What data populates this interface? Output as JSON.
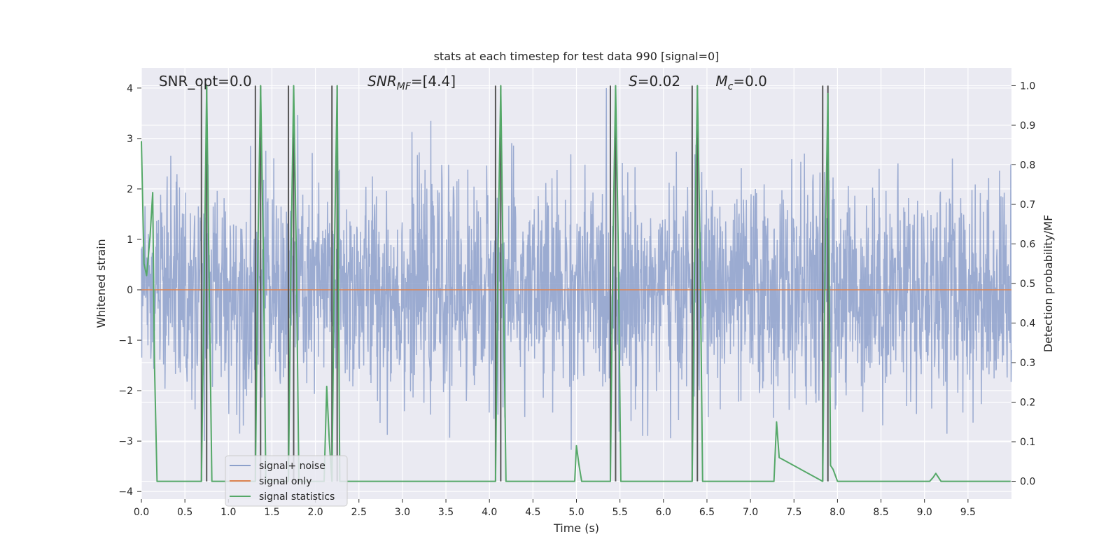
{
  "chart_data": {
    "type": "line",
    "title": "stats at each timestep for test data 990 [signal=0]",
    "xlabel": "Time (s)",
    "ylabel": "Whitened strain",
    "y2label": "Detection probability/MF",
    "xlim": [
      0,
      10
    ],
    "ylim": [
      -4.15,
      4.4
    ],
    "y2lim": [
      -0.045,
      1.045
    ],
    "x_ticks": [
      0.0,
      0.5,
      1.0,
      1.5,
      2.0,
      2.5,
      3.0,
      3.5,
      4.0,
      4.5,
      5.0,
      5.5,
      6.0,
      6.5,
      7.0,
      7.5,
      8.0,
      8.5,
      9.0,
      9.5
    ],
    "x_tick_labels": [
      "0.0",
      "0.5",
      "1.0",
      "1.5",
      "2.0",
      "2.5",
      "3.0",
      "3.5",
      "4.0",
      "4.5",
      "5.0",
      "5.5",
      "6.0",
      "6.5",
      "7.0",
      "7.5",
      "8.0",
      "8.5",
      "9.0",
      "9.5"
    ],
    "y_ticks": [
      -4,
      -3,
      -2,
      -1,
      0,
      1,
      2,
      3,
      4
    ],
    "y_tick_labels": [
      "−4",
      "−3",
      "−2",
      "−1",
      "0",
      "1",
      "2",
      "3",
      "4"
    ],
    "y2_ticks": [
      0.0,
      0.1,
      0.2,
      0.3,
      0.4,
      0.5,
      0.6,
      0.7,
      0.8,
      0.9,
      1.0
    ],
    "y2_tick_labels": [
      "0.0",
      "0.1",
      "0.2",
      "0.3",
      "0.4",
      "0.5",
      "0.6",
      "0.7",
      "0.8",
      "0.9",
      "1.0"
    ],
    "grid": true,
    "legend_position": "lower-left",
    "colors": {
      "background": "#eaeaf2",
      "grid": "#ffffff",
      "noise": "#8da0cb",
      "signal": "#dd8452",
      "statistics": "#55a868",
      "vline": "#555555"
    },
    "series": [
      {
        "name": "signal+ noise",
        "axis": "left",
        "noise_amplitude_sd": 1.0,
        "y_min_approx": -3.8,
        "y_max_approx": 4.0
      },
      {
        "name": "signal only",
        "axis": "left",
        "x": [
          0,
          10
        ],
        "y": [
          0,
          0
        ]
      },
      {
        "name": "signal statistics",
        "axis": "right",
        "x": [
          0.0,
          0.03,
          0.06,
          0.1,
          0.13,
          0.15,
          0.18,
          0.69,
          0.72,
          0.75,
          0.78,
          0.81,
          1.31,
          1.34,
          1.37,
          1.4,
          1.43,
          1.69,
          1.72,
          1.75,
          1.78,
          1.81,
          2.1,
          2.13,
          2.16,
          2.19,
          2.22,
          2.25,
          2.28,
          4.07,
          4.1,
          4.13,
          4.16,
          4.19,
          4.25,
          4.35,
          4.98,
          5.0,
          5.03,
          5.06,
          5.39,
          5.42,
          5.45,
          5.48,
          5.51,
          6.33,
          6.36,
          6.39,
          6.42,
          6.45,
          7.27,
          7.3,
          7.33,
          7.83,
          7.86,
          7.89,
          7.92,
          7.95,
          8.0,
          9.06,
          9.1,
          9.13,
          9.16,
          9.19,
          9.99
        ],
        "y": [
          0.86,
          0.55,
          0.52,
          0.62,
          0.73,
          0.3,
          0.0,
          0.0,
          0.48,
          1.0,
          0.48,
          0.0,
          0.0,
          0.6,
          1.0,
          0.6,
          0.0,
          0.0,
          0.58,
          1.0,
          0.58,
          0.0,
          0.0,
          0.24,
          0.1,
          0.0,
          0.6,
          1.0,
          0.0,
          0.0,
          0.6,
          1.0,
          0.5,
          0.0,
          0.0,
          0.0,
          0.0,
          0.09,
          0.04,
          0.0,
          0.0,
          0.6,
          1.0,
          0.6,
          0.0,
          0.0,
          0.6,
          1.0,
          0.6,
          0.0,
          0.0,
          0.15,
          0.06,
          0.0,
          0.6,
          0.98,
          0.04,
          0.03,
          0.0,
          0.0,
          0.01,
          0.02,
          0.01,
          0.0,
          0.0
        ]
      }
    ],
    "vertical_lines": [
      0.69,
      0.75,
      1.31,
      1.37,
      1.69,
      1.75,
      2.19,
      2.25,
      4.07,
      4.13,
      5.39,
      5.45,
      6.33,
      6.39,
      7.83,
      7.89
    ],
    "annotations": [
      {
        "text": "SNR_opt=0.0",
        "x": 0.2
      },
      {
        "text": "SNR",
        "sub": "MF",
        "rest": "=[4.4]",
        "italic": true,
        "x": 2.6
      },
      {
        "text": "S",
        "rest": "=0.02",
        "italic": true,
        "x": 5.6
      },
      {
        "text": "M",
        "sub": "c",
        "rest": "=0.0",
        "italic": true,
        "x": 6.6
      }
    ],
    "legend": [
      "signal+ noise",
      "signal only",
      "signal statistics"
    ]
  }
}
